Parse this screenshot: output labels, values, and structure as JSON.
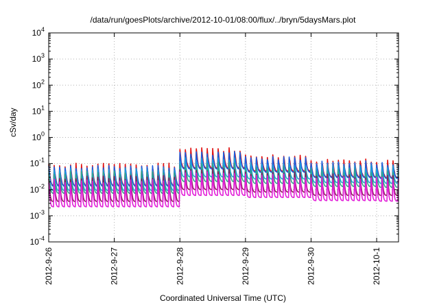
{
  "chart_data": {
    "type": "line",
    "title": "/data/run/goesPlots/archive/2012-10-01/08:00/flux/../bryn/5daysMars.plot",
    "xlabel": "Coordinated Universal Time (UTC)",
    "ylabel": "cSv/day",
    "y_scale": "log",
    "ylim": [
      0.0001,
      10000
    ],
    "y_ticks": [
      {
        "base": "10",
        "exp": "-4",
        "value": 0.0001
      },
      {
        "base": "10",
        "exp": "-3",
        "value": 0.001
      },
      {
        "base": "10",
        "exp": "-2",
        "value": 0.01
      },
      {
        "base": "10",
        "exp": "-1",
        "value": 0.1
      },
      {
        "base": "10",
        "exp": "0",
        "value": 1
      },
      {
        "base": "10",
        "exp": "1",
        "value": 10
      },
      {
        "base": "10",
        "exp": "2",
        "value": 100
      },
      {
        "base": "10",
        "exp": "3",
        "value": 1000
      },
      {
        "base": "10",
        "exp": "4",
        "value": 10000
      }
    ],
    "xlim": [
      "2012-09-26 00:00",
      "2012-10-01 08:00"
    ],
    "x_ticks": [
      "2012-9-26",
      "2012-9-27",
      "2012-9-28",
      "2012-9-29",
      "2012-9-30",
      "2012-10-1"
    ],
    "grid": true,
    "legend": "none",
    "sawtooth_period_hours": 2,
    "series": [
      {
        "color": "#e01010",
        "baseline": [
          0.014,
          0.014,
          0.065,
          0.05,
          0.03,
          0.028
        ],
        "peaks": [
          0.09,
          0.09,
          0.35,
          0.2,
          0.13,
          0.12
        ],
        "decay": 0.16
      },
      {
        "color": "#1a5fe0",
        "baseline": [
          0.013,
          0.013,
          0.06,
          0.045,
          0.028,
          0.026
        ],
        "peaks": [
          0.08,
          0.08,
          0.25,
          0.16,
          0.11,
          0.1
        ],
        "decay": 0.17
      },
      {
        "color": "#1fa0d8",
        "baseline": [
          0.009,
          0.009,
          0.03,
          0.025,
          0.018,
          0.017
        ],
        "peaks": [
          0.06,
          0.06,
          0.15,
          0.1,
          0.08,
          0.075
        ],
        "decay": 0.15
      },
      {
        "color": "#2fa68a",
        "baseline": [
          0.007,
          0.007,
          0.02,
          0.017,
          0.013,
          0.012
        ],
        "peaks": [
          0.045,
          0.045,
          0.1,
          0.07,
          0.055,
          0.05
        ],
        "decay": 0.15
      },
      {
        "color": "#8a1a5a",
        "baseline": [
          0.0035,
          0.0035,
          0.01,
          0.008,
          0.006,
          0.006
        ],
        "peaks": [
          0.03,
          0.03,
          0.06,
          0.045,
          0.035,
          0.032
        ],
        "decay": 0.12
      },
      {
        "color": "#e21fd8",
        "baseline": [
          0.0022,
          0.0022,
          0.006,
          0.005,
          0.0038,
          0.0036
        ],
        "peaks": [
          0.022,
          0.022,
          0.045,
          0.035,
          0.028,
          0.026
        ],
        "decay": 0.11
      }
    ]
  }
}
